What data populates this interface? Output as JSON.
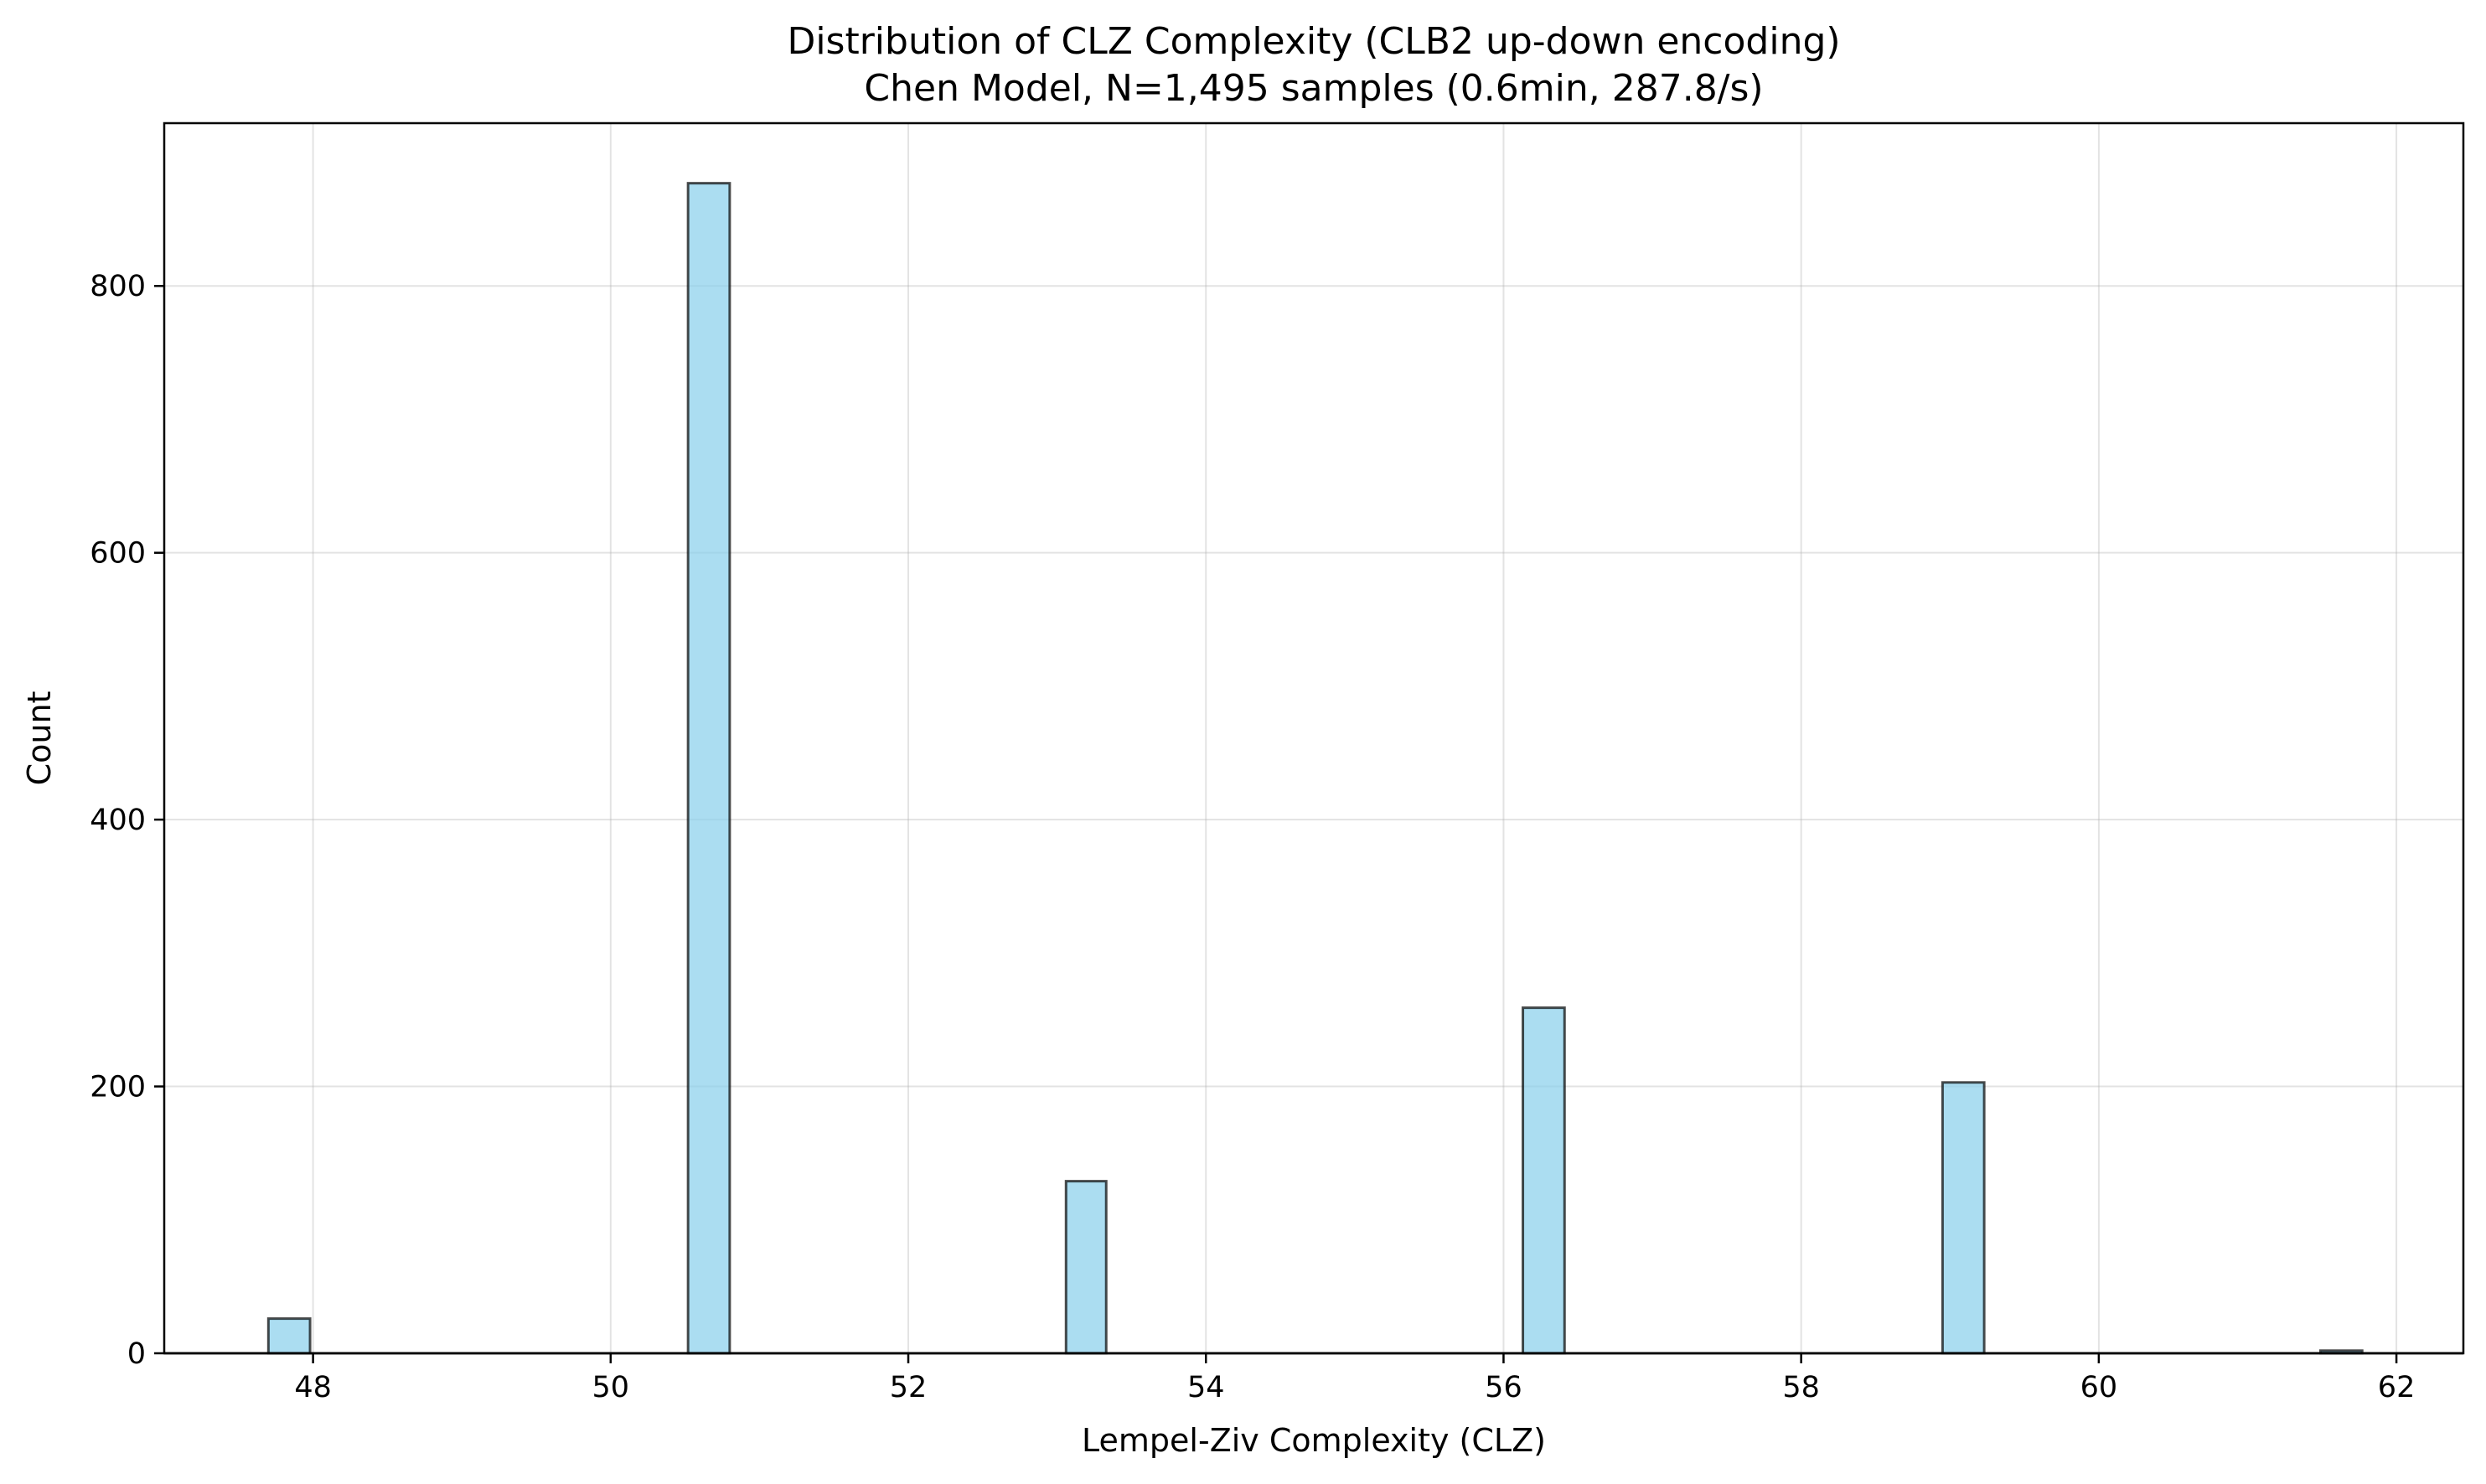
{
  "chart_data": {
    "type": "bar",
    "title": "Distribution of CLZ Complexity (CLB2 up-down encoding)",
    "subtitle": "Chen Model, N=1,495 samples (0.6min, 287.8/s)",
    "xlabel": "Lempel-Ziv Complexity (CLZ)",
    "ylabel": "Count",
    "xlim": [
      47.0,
      62.45
    ],
    "ylim": [
      0,
      922
    ],
    "xticks": [
      48,
      50,
      52,
      54,
      56,
      58,
      60,
      62
    ],
    "yticks": [
      0,
      200,
      400,
      600,
      800
    ],
    "grid": true,
    "bar_color": "#87CEEB",
    "edge_color": "#000000",
    "bars": [
      {
        "x0": 47.7,
        "x1": 47.98,
        "value": 26
      },
      {
        "x0": 50.52,
        "x1": 50.8,
        "value": 877
      },
      {
        "x0": 53.06,
        "x1": 53.33,
        "value": 129
      },
      {
        "x0": 56.13,
        "x1": 56.41,
        "value": 259
      },
      {
        "x0": 58.95,
        "x1": 59.23,
        "value": 203
      },
      {
        "x0": 61.49,
        "x1": 61.77,
        "value": 2
      }
    ]
  }
}
